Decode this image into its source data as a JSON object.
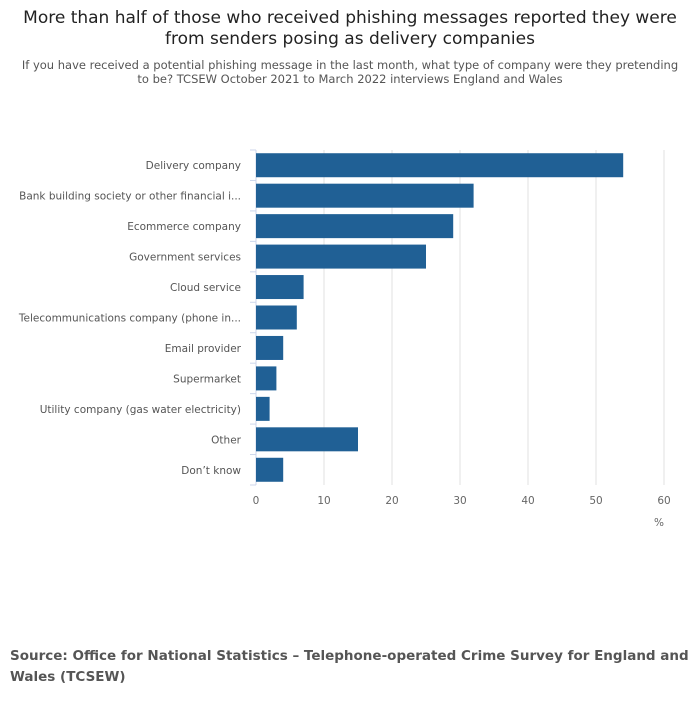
{
  "title": "More than half of those who received phishing messages reported they were from senders posing as delivery companies",
  "subtitle": "If you have received a potential phishing message in the last month, what type of company were they pretending to be? TCSEW October 2021 to March 2022 interviews England and Wales",
  "source": "Source: Office for National Statistics – Telephone-operated Crime Survey for England and Wales (TCSEW)",
  "chart_data": {
    "type": "bar",
    "orientation": "horizontal",
    "categories": [
      "Delivery company",
      "Bank building society or other financial i...",
      "Ecommerce company",
      "Government services",
      "Cloud service",
      "Telecommunications company (phone in...",
      "Email provider",
      "Supermarket",
      "Utility company (gas water electricity)",
      "Other",
      "Don’t know"
    ],
    "values": [
      54,
      32,
      29,
      25,
      7,
      6,
      4,
      3,
      2,
      15,
      4
    ],
    "xlabel": "%",
    "xlim": [
      0,
      60
    ],
    "xticks": [
      "0",
      "10",
      "20",
      "30",
      "40",
      "50",
      "60"
    ],
    "grid": true,
    "bar_color": "#206095"
  }
}
